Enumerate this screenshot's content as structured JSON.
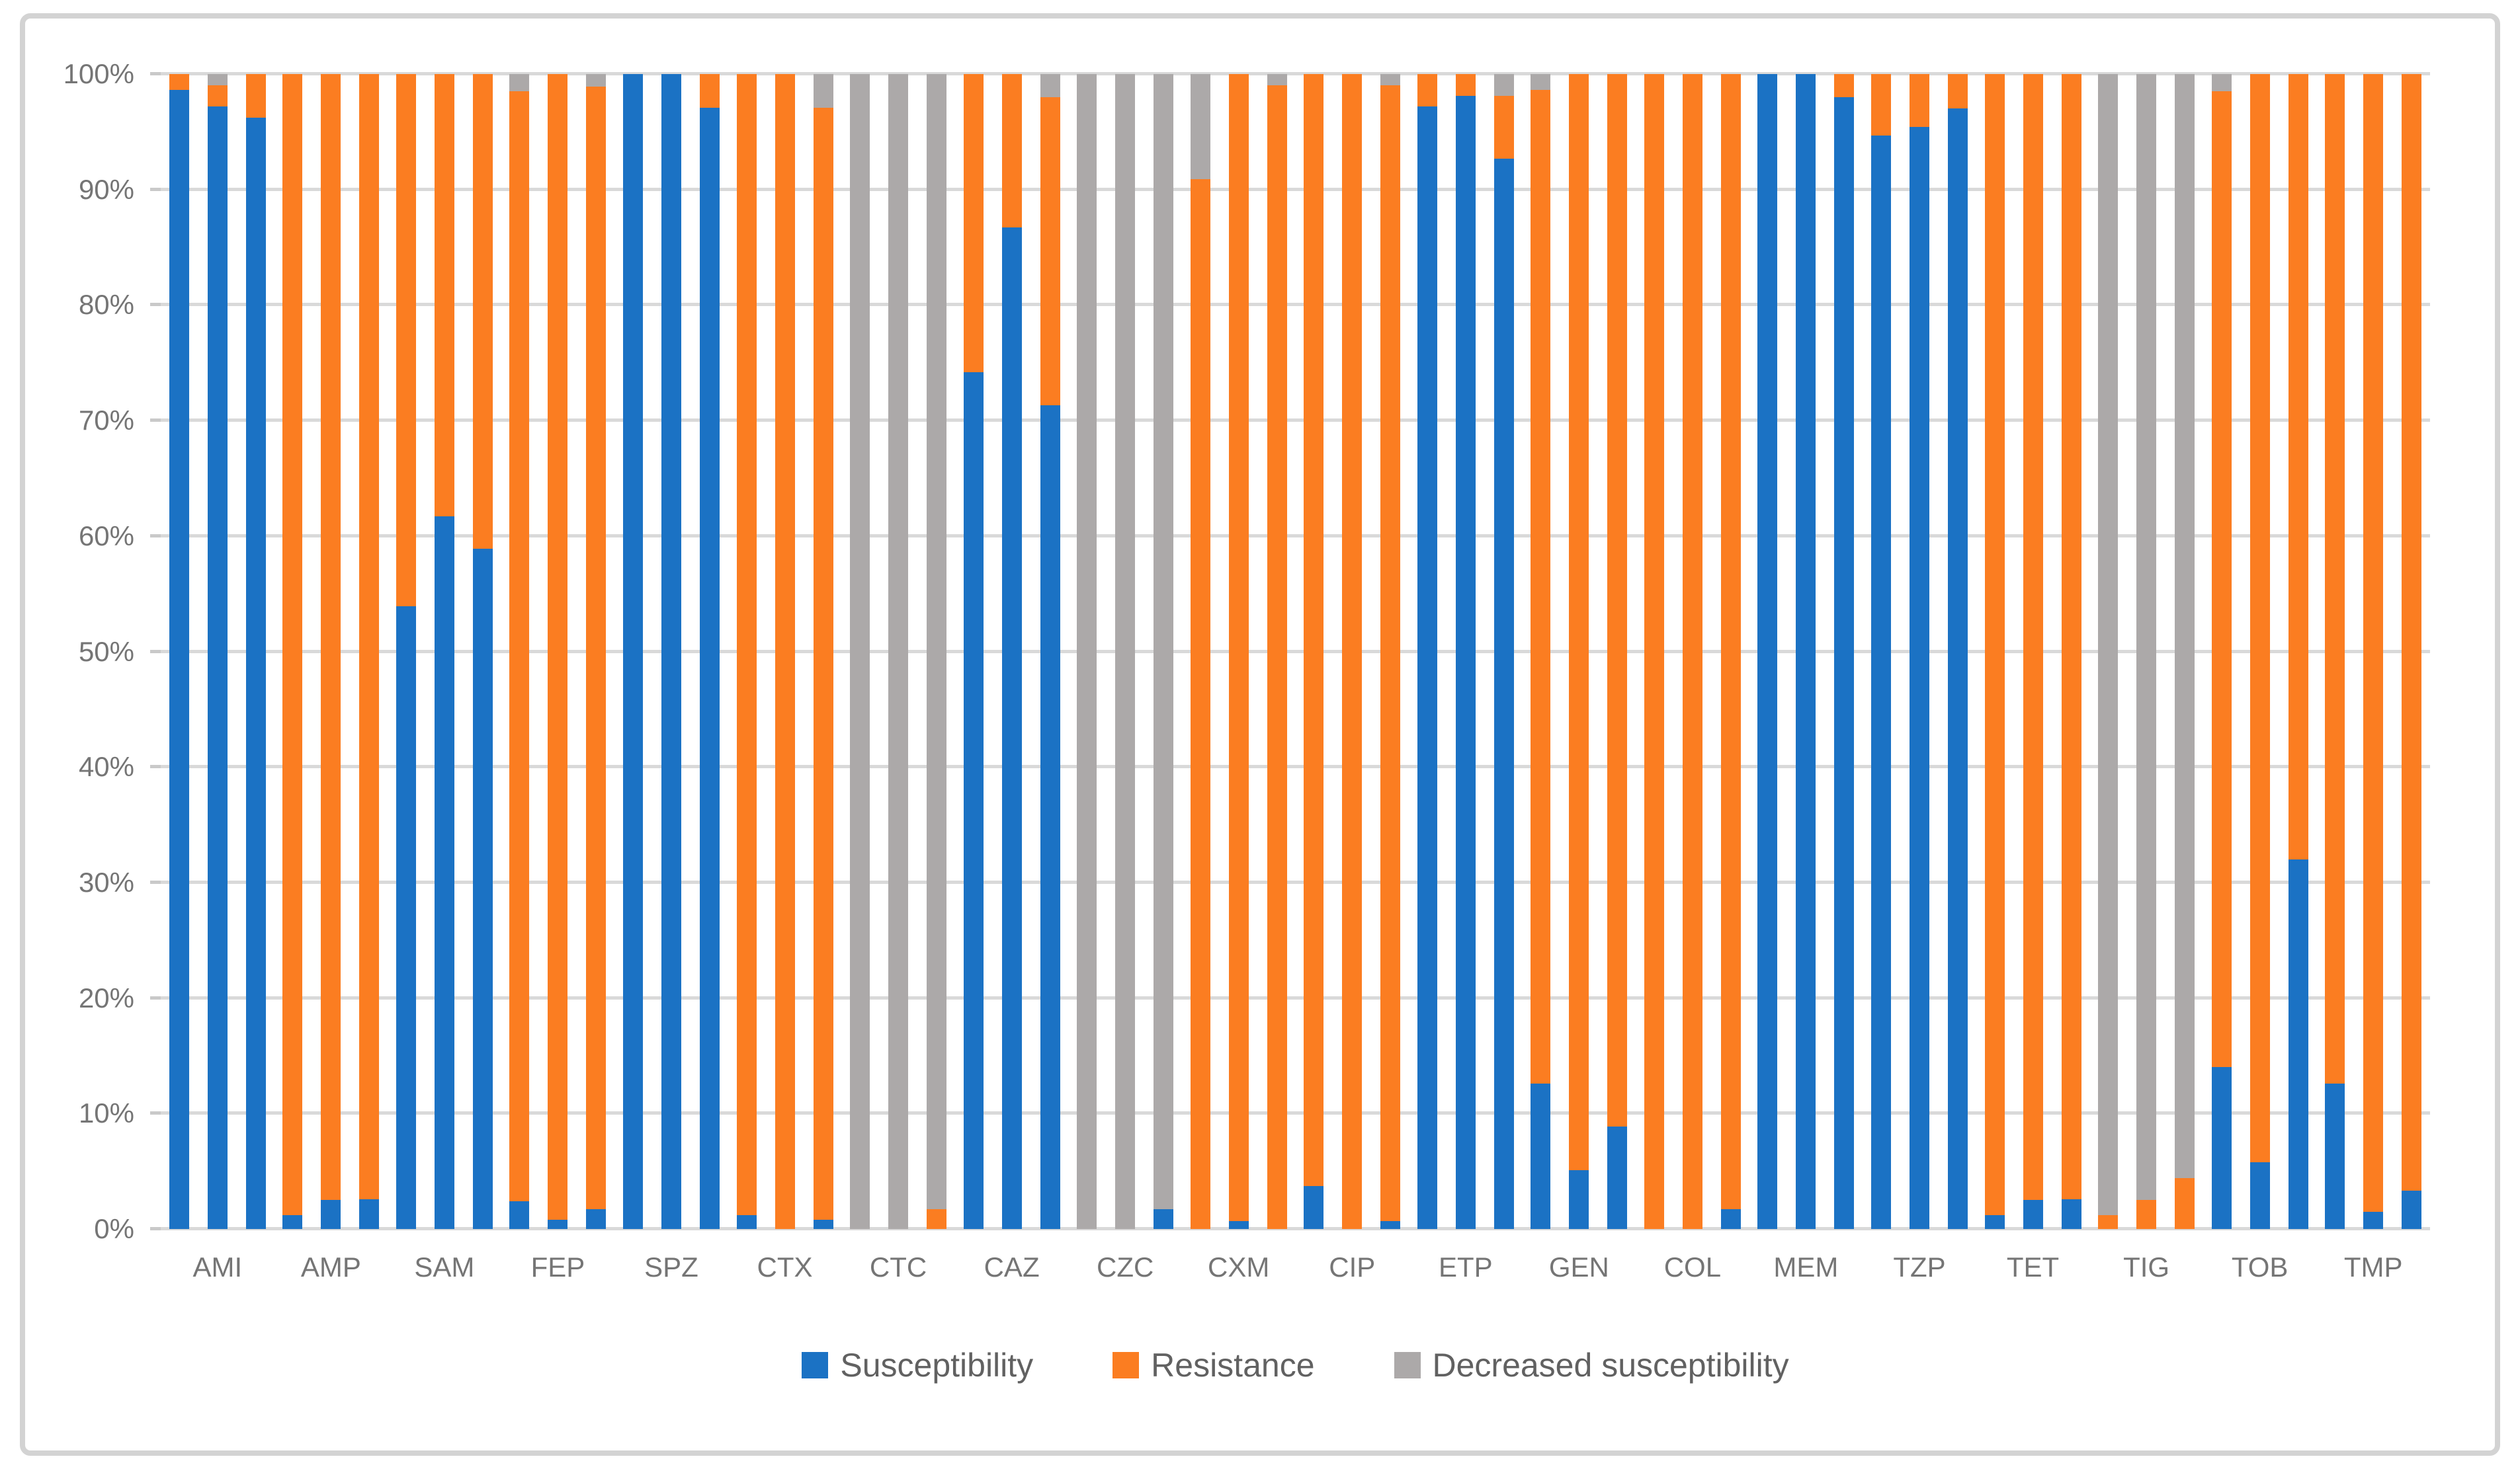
{
  "figure": {
    "background_color": "#ffffff",
    "frame_border_color": "#d3d3d3"
  },
  "chart_data": {
    "type": "bar",
    "subtype": "stacked-percent-column",
    "title": "",
    "xlabel": "",
    "ylabel": "",
    "grid": true,
    "gridline_color": "#d9d9d9",
    "axis_text_color": "#757575",
    "legend_position": "bottom",
    "colors": {
      "susceptibility": "#1B72C4",
      "resistance": "#FB7D21",
      "decreased": "#ACA9A9"
    },
    "legend": [
      {
        "key": "susceptibility",
        "label": "Susceptibility",
        "color": "#1B72C4"
      },
      {
        "key": "resistance",
        "label": "Resistance",
        "color": "#FB7D21"
      },
      {
        "key": "decreased",
        "label": "Decreased susceptibility",
        "color": "#ACA9A9"
      }
    ],
    "y_axis": {
      "min": 0,
      "max": 100,
      "tick_step": 10,
      "ticks_top_to_bottom": [
        "100%",
        "90%",
        "80%",
        "70%",
        "60%",
        "50%",
        "40%",
        "30%",
        "20%",
        "10%",
        "0%"
      ]
    },
    "categories": [
      "AMI",
      "AMP",
      "SAM",
      "FEP",
      "SPZ",
      "CTX",
      "CTC",
      "CAZ",
      "CZC",
      "CXM",
      "CIP",
      "ETP",
      "GEN",
      "COL",
      "MEM",
      "TZP",
      "TET",
      "TIG",
      "TOB",
      "TMP"
    ],
    "groups": [
      {
        "label": "AMI",
        "bars": [
          {
            "susceptibility": 98.6,
            "resistance": 1.4,
            "decreased": 0
          },
          {
            "susceptibility": 97.2,
            "resistance": 1.8,
            "decreased": 1.0
          },
          {
            "susceptibility": 96.2,
            "resistance": 3.8,
            "decreased": 0
          }
        ]
      },
      {
        "label": "AMP",
        "bars": [
          {
            "susceptibility": 1.2,
            "resistance": 98.8,
            "decreased": 0
          },
          {
            "susceptibility": 2.5,
            "resistance": 97.5,
            "decreased": 0
          },
          {
            "susceptibility": 2.6,
            "resistance": 97.4,
            "decreased": 0
          }
        ]
      },
      {
        "label": "SAM",
        "bars": [
          {
            "susceptibility": 53.9,
            "resistance": 46.1,
            "decreased": 0
          },
          {
            "susceptibility": 61.7,
            "resistance": 38.3,
            "decreased": 0
          },
          {
            "susceptibility": 58.9,
            "resistance": 41.1,
            "decreased": 0
          }
        ]
      },
      {
        "label": "FEP",
        "bars": [
          {
            "susceptibility": 2.4,
            "resistance": 96.1,
            "decreased": 1.5
          },
          {
            "susceptibility": 0.8,
            "resistance": 99.2,
            "decreased": 0
          },
          {
            "susceptibility": 1.7,
            "resistance": 97.2,
            "decreased": 1.1
          }
        ]
      },
      {
        "label": "SPZ",
        "bars": [
          {
            "susceptibility": 100,
            "resistance": 0,
            "decreased": 0
          },
          {
            "susceptibility": 100,
            "resistance": 0,
            "decreased": 0
          },
          {
            "susceptibility": 97.1,
            "resistance": 2.9,
            "decreased": 0
          }
        ]
      },
      {
        "label": "CTX",
        "bars": [
          {
            "susceptibility": 1.2,
            "resistance": 98.8,
            "decreased": 0
          },
          {
            "susceptibility": 0,
            "resistance": 100,
            "decreased": 0
          },
          {
            "susceptibility": 0.8,
            "resistance": 96.3,
            "decreased": 2.9
          }
        ]
      },
      {
        "label": "CTC",
        "bars": [
          {
            "susceptibility": 0,
            "resistance": 0,
            "decreased": 100
          },
          {
            "susceptibility": 0,
            "resistance": 0,
            "decreased": 100
          },
          {
            "susceptibility": 0,
            "resistance": 1.7,
            "decreased": 98.3
          }
        ]
      },
      {
        "label": "CAZ",
        "bars": [
          {
            "susceptibility": 74.2,
            "resistance": 25.8,
            "decreased": 0
          },
          {
            "susceptibility": 86.7,
            "resistance": 13.3,
            "decreased": 0
          },
          {
            "susceptibility": 71.3,
            "resistance": 26.7,
            "decreased": 2.0
          }
        ]
      },
      {
        "label": "CZC",
        "bars": [
          {
            "susceptibility": 0,
            "resistance": 0,
            "decreased": 100
          },
          {
            "susceptibility": 0,
            "resistance": 0,
            "decreased": 100
          },
          {
            "susceptibility": 1.7,
            "resistance": 0,
            "decreased": 98.3
          }
        ]
      },
      {
        "label": "CXM",
        "bars": [
          {
            "susceptibility": 0,
            "resistance": 90.9,
            "decreased": 9.1
          },
          {
            "susceptibility": 0.7,
            "resistance": 99.3,
            "decreased": 0
          },
          {
            "susceptibility": 0,
            "resistance": 99.0,
            "decreased": 1.0
          }
        ]
      },
      {
        "label": "CIP",
        "bars": [
          {
            "susceptibility": 3.7,
            "resistance": 96.3,
            "decreased": 0
          },
          {
            "susceptibility": 0,
            "resistance": 100,
            "decreased": 0
          },
          {
            "susceptibility": 0.7,
            "resistance": 98.3,
            "decreased": 1.0
          }
        ]
      },
      {
        "label": "ETP",
        "bars": [
          {
            "susceptibility": 97.2,
            "resistance": 2.8,
            "decreased": 0
          },
          {
            "susceptibility": 98.1,
            "resistance": 1.9,
            "decreased": 0
          },
          {
            "susceptibility": 92.7,
            "resistance": 5.4,
            "decreased": 1.9
          }
        ]
      },
      {
        "label": "GEN",
        "bars": [
          {
            "susceptibility": 12.6,
            "resistance": 86.0,
            "decreased": 1.4
          },
          {
            "susceptibility": 5.1,
            "resistance": 94.9,
            "decreased": 0
          },
          {
            "susceptibility": 8.9,
            "resistance": 91.1,
            "decreased": 0
          }
        ]
      },
      {
        "label": "COL",
        "bars": [
          {
            "susceptibility": 0,
            "resistance": 100,
            "decreased": 0
          },
          {
            "susceptibility": 0,
            "resistance": 100,
            "decreased": 0
          },
          {
            "susceptibility": 1.7,
            "resistance": 98.3,
            "decreased": 0
          }
        ]
      },
      {
        "label": "MEM",
        "bars": [
          {
            "susceptibility": 100,
            "resistance": 0,
            "decreased": 0
          },
          {
            "susceptibility": 100,
            "resistance": 0,
            "decreased": 0
          },
          {
            "susceptibility": 98.0,
            "resistance": 2.0,
            "decreased": 0
          }
        ]
      },
      {
        "label": "TZP",
        "bars": [
          {
            "susceptibility": 94.7,
            "resistance": 5.3,
            "decreased": 0
          },
          {
            "susceptibility": 95.4,
            "resistance": 4.6,
            "decreased": 0
          },
          {
            "susceptibility": 97.0,
            "resistance": 3.0,
            "decreased": 0
          }
        ]
      },
      {
        "label": "TET",
        "bars": [
          {
            "susceptibility": 1.2,
            "resistance": 98.8,
            "decreased": 0
          },
          {
            "susceptibility": 2.5,
            "resistance": 97.5,
            "decreased": 0
          },
          {
            "susceptibility": 2.6,
            "resistance": 97.4,
            "decreased": 0
          }
        ]
      },
      {
        "label": "TIG",
        "bars": [
          {
            "susceptibility": 0,
            "resistance": 1.2,
            "decreased": 98.8
          },
          {
            "susceptibility": 0,
            "resistance": 2.5,
            "decreased": 97.5
          },
          {
            "susceptibility": 0,
            "resistance": 4.4,
            "decreased": 95.6
          }
        ]
      },
      {
        "label": "TOB",
        "bars": [
          {
            "susceptibility": 14.0,
            "resistance": 84.5,
            "decreased": 1.5
          },
          {
            "susceptibility": 5.8,
            "resistance": 94.2,
            "decreased": 0
          },
          {
            "susceptibility": 32.0,
            "resistance": 68.0,
            "decreased": 0
          }
        ]
      },
      {
        "label": "TMP",
        "bars": [
          {
            "susceptibility": 12.6,
            "resistance": 87.4,
            "decreased": 0
          },
          {
            "susceptibility": 1.5,
            "resistance": 98.5,
            "decreased": 0
          },
          {
            "susceptibility": 3.3,
            "resistance": 96.7,
            "decreased": 0
          }
        ]
      }
    ]
  }
}
